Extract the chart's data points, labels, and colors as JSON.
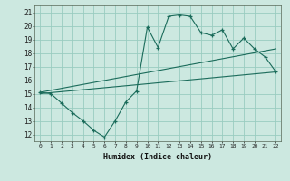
{
  "xlabel": "Humidex (Indice chaleur)",
  "ylabel": "",
  "bg_color": "#cce8e0",
  "grid_color": "#99ccc0",
  "line_color": "#1a6b5a",
  "xlim": [
    -0.5,
    22.5
  ],
  "ylim": [
    11.5,
    21.5
  ],
  "xticks": [
    0,
    1,
    2,
    3,
    4,
    5,
    6,
    7,
    8,
    9,
    10,
    11,
    12,
    13,
    14,
    15,
    16,
    17,
    18,
    19,
    20,
    21,
    22
  ],
  "yticks": [
    12,
    13,
    14,
    15,
    16,
    17,
    18,
    19,
    20,
    21
  ],
  "main_x": [
    0,
    1,
    2,
    3,
    4,
    5,
    6,
    7,
    8,
    9,
    10,
    11,
    12,
    13,
    14,
    15,
    16,
    17,
    18,
    19,
    20,
    21,
    22
  ],
  "main_y": [
    15.1,
    15.0,
    14.3,
    13.6,
    13.0,
    12.3,
    11.8,
    13.0,
    14.4,
    15.2,
    19.9,
    18.4,
    20.7,
    20.8,
    20.7,
    19.5,
    19.3,
    19.7,
    18.3,
    19.1,
    18.3,
    17.7,
    16.6
  ],
  "trend1_x": [
    0,
    22
  ],
  "trend1_y": [
    15.1,
    18.3
  ],
  "trend2_x": [
    0,
    22
  ],
  "trend2_y": [
    15.0,
    16.6
  ]
}
